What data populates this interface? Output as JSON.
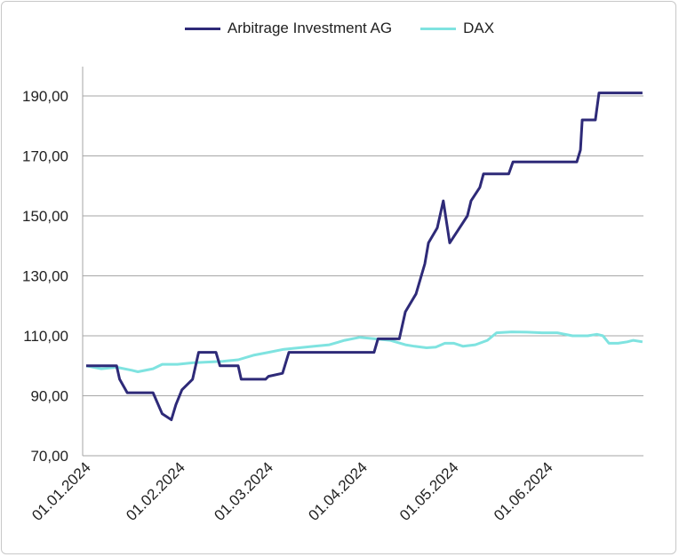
{
  "chart_data": {
    "type": "line",
    "title": "",
    "xlabel": "",
    "ylabel": "",
    "ylim": [
      70,
      190
    ],
    "x_unit": "days since 01.01.2024",
    "xlim": [
      0,
      183
    ],
    "y_ticks": [
      70,
      90,
      110,
      130,
      150,
      170,
      190
    ],
    "y_tick_labels": [
      "70,00",
      "90,00",
      "110,00",
      "130,00",
      "150,00",
      "170,00",
      "190,00"
    ],
    "x_ticks": [
      0,
      31,
      60,
      91,
      121,
      152
    ],
    "x_tick_labels": [
      "01.01.2024",
      "01.02.2024",
      "01.03.2024",
      "01.04.2024",
      "01.05.2024",
      "01.06.2024"
    ],
    "grid": true,
    "legend_position": "top-center",
    "series": [
      {
        "name": "Arbitrage Investment AG",
        "color": "#2e2a78",
        "x": [
          0,
          10,
          11,
          13.5,
          22,
          25,
          28,
          29.5,
          31.5,
          35,
          37,
          42.7,
          44,
          50,
          51,
          59,
          60,
          64.6,
          66.7,
          94.7,
          96,
          103,
          105,
          108.5,
          111.4,
          112.6,
          115.5,
          117.5,
          119.6,
          122.5,
          125.4,
          126.6,
          129.5,
          130.7,
          139,
          140.4,
          161.4,
          162.6,
          163.2,
          167.5,
          168.7,
          183
        ],
        "values": [
          100,
          100,
          95.5,
          91,
          91,
          84,
          82,
          87,
          92,
          95.5,
          104.5,
          104.5,
          100,
          100,
          95.5,
          95.5,
          96.5,
          97.5,
          104.5,
          104.5,
          109,
          109,
          118,
          124,
          134,
          141,
          146,
          155,
          141,
          145.5,
          150,
          155,
          159.5,
          164,
          164,
          168,
          168,
          172,
          182,
          182,
          191,
          191
        ]
      },
      {
        "name": "DAX",
        "color": "#7fe3e0",
        "x": [
          0,
          5,
          10,
          15,
          17,
          22,
          25,
          30,
          35,
          45,
          50,
          55,
          60,
          65,
          70,
          75,
          80,
          85,
          90,
          95,
          100,
          105,
          108,
          112,
          115,
          118,
          121,
          124,
          128,
          132,
          135,
          140,
          145,
          150,
          155,
          160,
          165,
          168,
          170,
          172,
          175,
          178,
          180,
          183
        ],
        "values": [
          100,
          99,
          99.5,
          98.5,
          98,
          99,
          100.5,
          100.5,
          101,
          101.5,
          102,
          103.5,
          104.5,
          105.5,
          106,
          106.5,
          107,
          108.5,
          109.5,
          109,
          108.5,
          107,
          106.5,
          106,
          106.2,
          107.5,
          107.5,
          106.5,
          107,
          108.5,
          111,
          111.3,
          111.2,
          111,
          111,
          110,
          110,
          110.5,
          110,
          107.5,
          107.5,
          108,
          108.5,
          108
        ]
      }
    ]
  }
}
